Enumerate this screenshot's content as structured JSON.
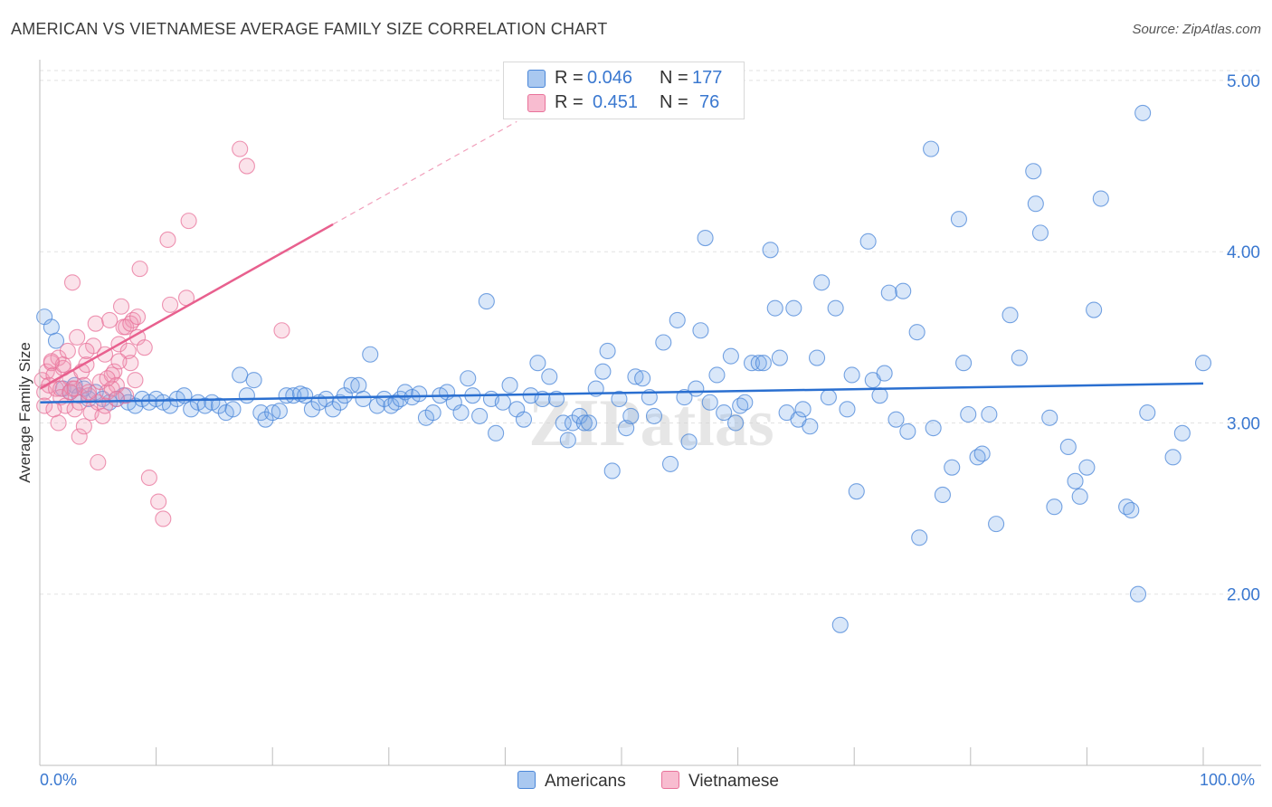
{
  "title": "AMERICAN VS VIETNAMESE AVERAGE FAMILY SIZE CORRELATION CHART",
  "source": "Source: ZipAtlas.com",
  "colors": {
    "blue": "#4a86d8",
    "blue_fill": "rgba(120,170,235,0.28)",
    "pink": "#e8729a",
    "pink_fill": "rgba(240,150,180,0.28)",
    "blue_line": "#2a6fd0",
    "pink_line": "#e8608e",
    "tick_text": "#3a78d0",
    "grid": "#e2e2e2"
  },
  "legend": {
    "rows": [
      {
        "r_label": "R =",
        "r_value": "0.046",
        "n_label": "N =",
        "n_value": "177",
        "color": "#a9c8f0",
        "border": "#4a86d8"
      },
      {
        "r_label": "R =",
        "r_value": "0.451",
        "n_label": "N =",
        "n_value": "76",
        "color": "#f8bcd0",
        "border": "#e8729a"
      }
    ]
  },
  "bottom_legend": {
    "americans": "Americans",
    "vietnamese": "Vietnamese"
  },
  "watermark": "ZIPatlas",
  "chart_data": {
    "type": "scatter",
    "title": "AMERICAN VS VIETNAMESE AVERAGE FAMILY SIZE CORRELATION CHART",
    "xlabel": "",
    "ylabel": "Average Family Size",
    "x_tick_labels": [
      "0.0%",
      "100.0%"
    ],
    "y_ticks": [
      2.0,
      3.0,
      4.0,
      5.0
    ],
    "y_tick_labels": [
      "2.00",
      "3.00",
      "4.00",
      "5.00"
    ],
    "xlim": [
      0,
      100
    ],
    "ylim": [
      1.0,
      5.1
    ],
    "grid": true,
    "series": [
      {
        "name": "Americans",
        "trend": {
          "x0": 0,
          "y0": 3.12,
          "x1": 100,
          "y1": 3.23
        },
        "points": [
          [
            0.4,
            3.62
          ],
          [
            1.0,
            3.56
          ],
          [
            1.4,
            3.48
          ],
          [
            2.0,
            3.2
          ],
          [
            2.6,
            3.18
          ],
          [
            3.0,
            3.22
          ],
          [
            3.4,
            3.16
          ],
          [
            3.8,
            3.2
          ],
          [
            4.2,
            3.14
          ],
          [
            4.8,
            3.18
          ],
          [
            5.4,
            3.14
          ],
          [
            6.0,
            3.12
          ],
          [
            6.6,
            3.14
          ],
          [
            7.2,
            3.16
          ],
          [
            7.6,
            3.12
          ],
          [
            8.2,
            3.1
          ],
          [
            8.8,
            3.14
          ],
          [
            9.4,
            3.12
          ],
          [
            10.0,
            3.14
          ],
          [
            10.6,
            3.12
          ],
          [
            11.2,
            3.1
          ],
          [
            11.8,
            3.14
          ],
          [
            12.4,
            3.16
          ],
          [
            13.0,
            3.08
          ],
          [
            13.6,
            3.12
          ],
          [
            14.2,
            3.1
          ],
          [
            14.8,
            3.12
          ],
          [
            15.4,
            3.1
          ],
          [
            16.0,
            3.06
          ],
          [
            16.6,
            3.08
          ],
          [
            17.2,
            3.28
          ],
          [
            17.8,
            3.16
          ],
          [
            18.4,
            3.25
          ],
          [
            19.0,
            3.06
          ],
          [
            19.4,
            3.02
          ],
          [
            20.0,
            3.06
          ],
          [
            20.6,
            3.07
          ],
          [
            21.2,
            3.16
          ],
          [
            21.8,
            3.16
          ],
          [
            22.4,
            3.17
          ],
          [
            22.8,
            3.16
          ],
          [
            23.4,
            3.08
          ],
          [
            24.0,
            3.12
          ],
          [
            24.6,
            3.14
          ],
          [
            25.2,
            3.08
          ],
          [
            25.8,
            3.12
          ],
          [
            26.2,
            3.16
          ],
          [
            26.8,
            3.22
          ],
          [
            27.4,
            3.22
          ],
          [
            27.8,
            3.14
          ],
          [
            28.4,
            3.4
          ],
          [
            29.0,
            3.1
          ],
          [
            29.6,
            3.14
          ],
          [
            30.2,
            3.1
          ],
          [
            30.6,
            3.12
          ],
          [
            31.0,
            3.14
          ],
          [
            31.4,
            3.18
          ],
          [
            32.0,
            3.15
          ],
          [
            32.6,
            3.17
          ],
          [
            33.2,
            3.03
          ],
          [
            33.8,
            3.06
          ],
          [
            34.4,
            3.16
          ],
          [
            35.0,
            3.18
          ],
          [
            35.6,
            3.12
          ],
          [
            36.2,
            3.06
          ],
          [
            36.8,
            3.26
          ],
          [
            37.2,
            3.16
          ],
          [
            37.8,
            3.04
          ],
          [
            38.4,
            3.71
          ],
          [
            38.8,
            3.14
          ],
          [
            39.2,
            2.94
          ],
          [
            39.8,
            3.12
          ],
          [
            40.4,
            3.22
          ],
          [
            41.0,
            3.08
          ],
          [
            41.6,
            3.02
          ],
          [
            42.2,
            3.16
          ],
          [
            42.8,
            3.35
          ],
          [
            43.2,
            3.14
          ],
          [
            43.8,
            3.27
          ],
          [
            44.4,
            3.14
          ],
          [
            45.0,
            3.0
          ],
          [
            45.4,
            2.9
          ],
          [
            45.8,
            3.0
          ],
          [
            46.4,
            3.04
          ],
          [
            46.8,
            3.0
          ],
          [
            47.2,
            3.0
          ],
          [
            47.8,
            3.2
          ],
          [
            48.4,
            3.3
          ],
          [
            48.8,
            3.42
          ],
          [
            49.2,
            2.72
          ],
          [
            49.8,
            3.14
          ],
          [
            50.4,
            2.97
          ],
          [
            50.8,
            3.04
          ],
          [
            51.2,
            3.27
          ],
          [
            51.8,
            3.26
          ],
          [
            52.4,
            3.15
          ],
          [
            52.8,
            3.04
          ],
          [
            53.6,
            3.47
          ],
          [
            54.2,
            2.76
          ],
          [
            54.8,
            3.6
          ],
          [
            55.4,
            3.15
          ],
          [
            55.8,
            2.89
          ],
          [
            56.4,
            3.2
          ],
          [
            56.8,
            3.54
          ],
          [
            57.2,
            4.08
          ],
          [
            57.6,
            3.12
          ],
          [
            58.2,
            3.28
          ],
          [
            58.8,
            3.06
          ],
          [
            59.4,
            3.39
          ],
          [
            59.8,
            3.0
          ],
          [
            60.2,
            3.1
          ],
          [
            60.6,
            3.12
          ],
          [
            61.2,
            3.35
          ],
          [
            61.8,
            3.35
          ],
          [
            62.2,
            3.35
          ],
          [
            62.8,
            4.01
          ],
          [
            63.2,
            3.67
          ],
          [
            63.6,
            3.38
          ],
          [
            64.2,
            3.06
          ],
          [
            64.8,
            3.67
          ],
          [
            65.2,
            3.02
          ],
          [
            65.6,
            3.08
          ],
          [
            66.2,
            2.98
          ],
          [
            66.8,
            3.38
          ],
          [
            67.2,
            3.82
          ],
          [
            67.8,
            3.15
          ],
          [
            68.4,
            3.67
          ],
          [
            68.8,
            1.82
          ],
          [
            69.4,
            3.08
          ],
          [
            69.8,
            3.28
          ],
          [
            70.2,
            2.6
          ],
          [
            71.2,
            4.06
          ],
          [
            71.6,
            3.25
          ],
          [
            72.2,
            3.16
          ],
          [
            72.6,
            3.29
          ],
          [
            73.0,
            3.76
          ],
          [
            73.6,
            3.02
          ],
          [
            74.2,
            3.77
          ],
          [
            74.6,
            2.95
          ],
          [
            75.4,
            3.53
          ],
          [
            75.6,
            2.33
          ],
          [
            76.6,
            4.6
          ],
          [
            76.8,
            2.97
          ],
          [
            77.6,
            2.58
          ],
          [
            78.4,
            2.74
          ],
          [
            79.0,
            4.19
          ],
          [
            79.4,
            3.35
          ],
          [
            79.8,
            3.05
          ],
          [
            80.6,
            2.8
          ],
          [
            81.0,
            2.82
          ],
          [
            81.6,
            3.05
          ],
          [
            82.2,
            2.41
          ],
          [
            83.4,
            3.63
          ],
          [
            84.2,
            3.38
          ],
          [
            85.4,
            4.47
          ],
          [
            85.6,
            4.28
          ],
          [
            86.0,
            4.11
          ],
          [
            86.8,
            3.03
          ],
          [
            87.2,
            2.51
          ],
          [
            88.4,
            2.86
          ],
          [
            89.0,
            2.66
          ],
          [
            89.4,
            2.57
          ],
          [
            90.0,
            2.74
          ],
          [
            90.6,
            3.66
          ],
          [
            91.2,
            4.31
          ],
          [
            93.4,
            2.51
          ],
          [
            93.8,
            2.49
          ],
          [
            94.4,
            2.0
          ],
          [
            94.8,
            4.81
          ],
          [
            95.2,
            3.06
          ],
          [
            97.4,
            2.8
          ],
          [
            98.2,
            2.94
          ],
          [
            100.0,
            3.35
          ]
        ]
      },
      {
        "name": "Vietnamese",
        "trend": {
          "x0": 0,
          "y0": 3.2,
          "x1": 25.2,
          "y1": 4.16
        },
        "trend_dashed_to": {
          "x": 41.0,
          "y": 4.76
        },
        "points": [
          [
            0.2,
            3.25
          ],
          [
            0.4,
            3.18
          ],
          [
            0.6,
            3.3
          ],
          [
            0.8,
            3.22
          ],
          [
            1.0,
            3.35
          ],
          [
            1.2,
            3.28
          ],
          [
            1.4,
            3.2
          ],
          [
            1.6,
            3.38
          ],
          [
            1.8,
            3.15
          ],
          [
            2.0,
            3.32
          ],
          [
            2.2,
            3.1
          ],
          [
            2.4,
            3.42
          ],
          [
            2.6,
            3.26
          ],
          [
            2.8,
            3.2
          ],
          [
            3.0,
            3.08
          ],
          [
            3.2,
            3.5
          ],
          [
            3.4,
            3.12
          ],
          [
            3.6,
            3.3
          ],
          [
            3.8,
            3.22
          ],
          [
            4.0,
            3.34
          ],
          [
            4.2,
            3.16
          ],
          [
            4.4,
            3.06
          ],
          [
            4.6,
            3.45
          ],
          [
            4.8,
            3.58
          ],
          [
            5.0,
            3.12
          ],
          [
            5.2,
            3.24
          ],
          [
            5.4,
            3.04
          ],
          [
            5.6,
            3.4
          ],
          [
            5.8,
            3.18
          ],
          [
            6.0,
            3.6
          ],
          [
            6.2,
            3.28
          ],
          [
            6.4,
            3.3
          ],
          [
            6.6,
            3.22
          ],
          [
            6.8,
            3.46
          ],
          [
            7.0,
            3.68
          ],
          [
            7.2,
            3.56
          ],
          [
            7.4,
            3.16
          ],
          [
            7.6,
            3.42
          ],
          [
            7.8,
            3.35
          ],
          [
            8.0,
            3.6
          ],
          [
            8.2,
            3.25
          ],
          [
            8.4,
            3.5
          ],
          [
            8.6,
            3.9
          ],
          [
            2.8,
            3.82
          ],
          [
            1.6,
            3.0
          ],
          [
            2.0,
            3.34
          ],
          [
            3.4,
            2.92
          ],
          [
            3.8,
            2.98
          ],
          [
            4.2,
            3.18
          ],
          [
            5.0,
            2.77
          ],
          [
            5.6,
            3.1
          ],
          [
            6.2,
            3.2
          ],
          [
            6.8,
            3.36
          ],
          [
            7.4,
            3.56
          ],
          [
            7.8,
            3.58
          ],
          [
            8.4,
            3.62
          ],
          [
            9.0,
            3.44
          ],
          [
            9.4,
            2.68
          ],
          [
            10.2,
            2.54
          ],
          [
            10.6,
            2.44
          ],
          [
            11.0,
            4.07
          ],
          [
            11.2,
            3.69
          ],
          [
            12.6,
            3.73
          ],
          [
            12.8,
            4.18
          ],
          [
            17.2,
            4.6
          ],
          [
            17.8,
            4.5
          ],
          [
            20.8,
            3.54
          ],
          [
            0.4,
            3.1
          ],
          [
            1.0,
            3.36
          ],
          [
            1.8,
            3.2
          ],
          [
            2.6,
            3.18
          ],
          [
            3.0,
            3.2
          ],
          [
            4.0,
            3.42
          ],
          [
            5.8,
            3.26
          ],
          [
            6.6,
            3.14
          ],
          [
            1.2,
            3.08
          ]
        ]
      }
    ]
  }
}
